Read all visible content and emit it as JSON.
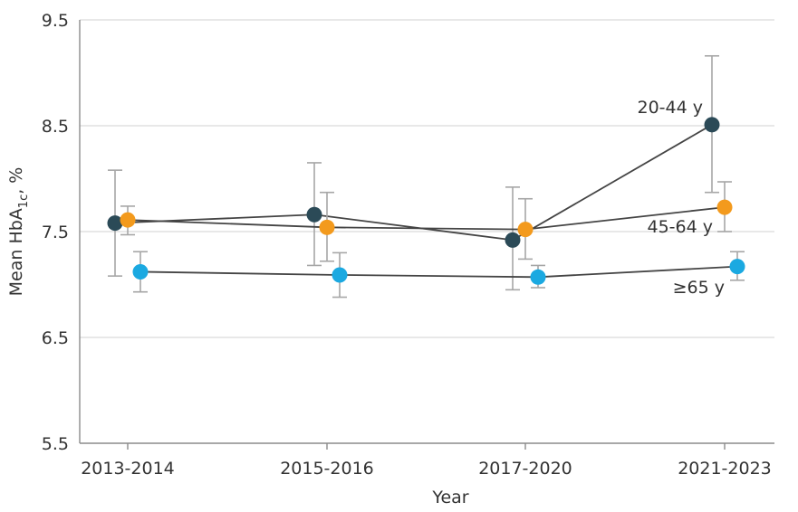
{
  "chart_data": {
    "type": "line",
    "categories": [
      "2013-2014",
      "2015-2016",
      "2017-2020",
      "2021-2023"
    ],
    "xlabel": "Year",
    "ylabel": "Mean HbA",
    "ylabel_sub": "1c",
    "ylabel_suffix": ", %",
    "ylim": [
      5.5,
      9.5
    ],
    "yticks": [
      "5.5",
      "6.5",
      "7.5",
      "8.5",
      "9.5"
    ],
    "grid": true,
    "series": [
      {
        "name": "20-44 y",
        "color": "#2b4a57",
        "values": [
          7.58,
          7.66,
          7.42,
          8.51
        ],
        "ci_low": [
          7.08,
          7.18,
          6.95,
          7.87
        ],
        "ci_high": [
          8.08,
          8.15,
          7.92,
          9.16
        ]
      },
      {
        "name": "45-64 y",
        "color": "#f39a1d",
        "values": [
          7.61,
          7.54,
          7.52,
          7.73
        ],
        "ci_low": [
          7.47,
          7.22,
          7.24,
          7.5
        ],
        "ci_high": [
          7.74,
          7.87,
          7.81,
          7.97
        ]
      },
      {
        "name": "≥65 y",
        "color": "#1ba9e1",
        "values": [
          7.12,
          7.09,
          7.07,
          7.17
        ],
        "ci_low": [
          6.93,
          6.88,
          6.97,
          7.04
        ],
        "ci_high": [
          7.31,
          7.3,
          7.18,
          7.31
        ]
      }
    ]
  }
}
